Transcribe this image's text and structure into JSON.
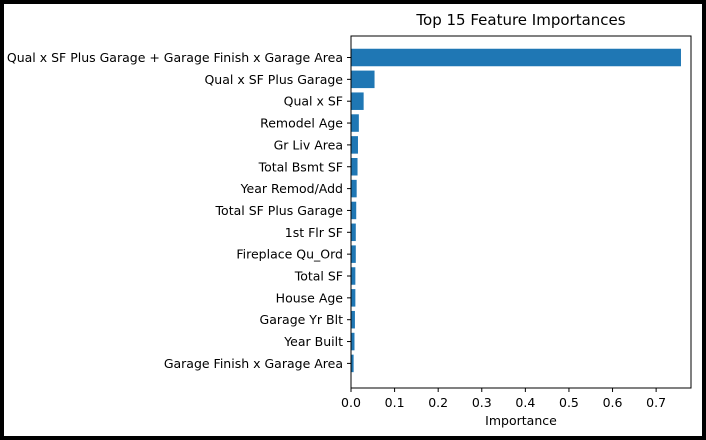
{
  "chart_data": {
    "type": "bar",
    "orientation": "horizontal",
    "title": "Top 15 Feature Importances",
    "xlabel": "Importance",
    "ylabel": "",
    "xlim": [
      0,
      0.78
    ],
    "xticks": [
      "0.0",
      "0.1",
      "0.2",
      "0.3",
      "0.4",
      "0.5",
      "0.6",
      "0.7"
    ],
    "grid": false,
    "bar_color": "#1f77b4",
    "categories": [
      "Qual x SF Plus Garage + Garage Finish x Garage Area",
      "Qual x SF Plus Garage",
      "Qual x SF",
      "Remodel Age",
      "Gr Liv Area",
      "Total Bsmt SF",
      "Year Remod/Add",
      "Total SF Plus Garage",
      "1st Flr SF",
      "Fireplace Qu_Ord",
      "Total SF",
      "House Age",
      "Garage Yr Blt",
      "Year Built",
      "Garage Finish x Garage Area"
    ],
    "values": [
      0.757,
      0.054,
      0.029,
      0.018,
      0.016,
      0.015,
      0.013,
      0.012,
      0.011,
      0.011,
      0.01,
      0.01,
      0.009,
      0.008,
      0.006
    ]
  }
}
